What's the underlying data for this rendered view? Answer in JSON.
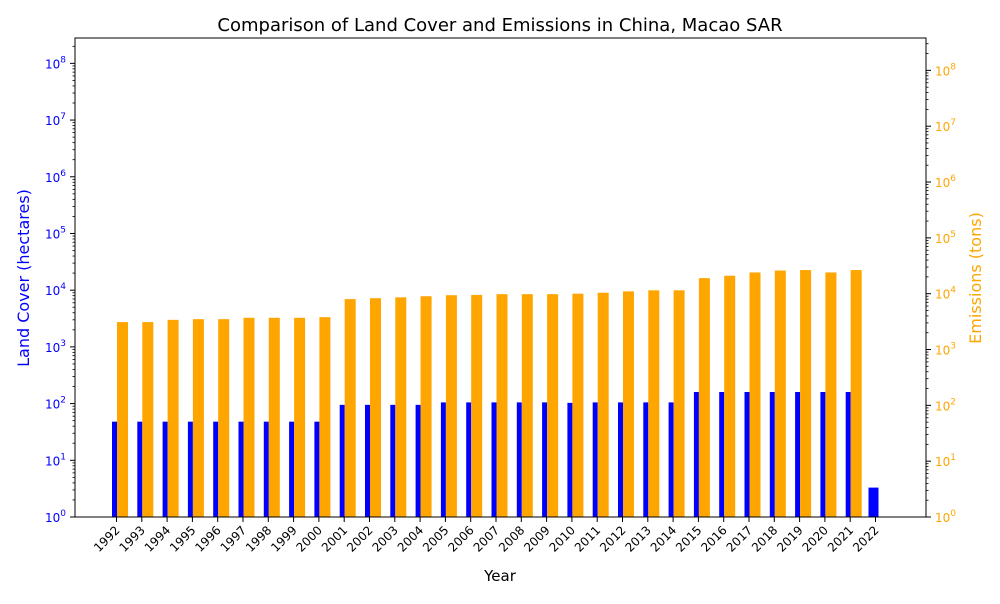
{
  "chart_data": {
    "type": "bar",
    "title": "Comparison of Land Cover and Emissions in China, Macao SAR",
    "xlabel": "Year",
    "ylabel_left": "Land Cover (hectares)",
    "ylabel_right": "Emissions (tons)",
    "scale": "log",
    "ylim_left": [
      1,
      280000000
    ],
    "ylim_right": [
      1,
      380000000
    ],
    "left_ticks": [
      "10^0",
      "10^1",
      "10^2",
      "10^3",
      "10^4",
      "10^5",
      "10^6",
      "10^7",
      "10^8"
    ],
    "right_ticks": [
      "10^0",
      "10^1",
      "10^2",
      "10^3",
      "10^4",
      "10^5",
      "10^6",
      "10^7",
      "10^8"
    ],
    "categories": [
      "1992",
      "1993",
      "1994",
      "1995",
      "1996",
      "1997",
      "1998",
      "1999",
      "2000",
      "2001",
      "2002",
      "2003",
      "2004",
      "2005",
      "2006",
      "2007",
      "2008",
      "2009",
      "2010",
      "2011",
      "2012",
      "2013",
      "2014",
      "2015",
      "2016",
      "2017",
      "2018",
      "2019",
      "2020",
      "2021",
      "2022"
    ],
    "series": [
      {
        "name": "Land Cover (hectares)",
        "axis": "left",
        "color": "#0000ff",
        "values": [
          48,
          48,
          48,
          48,
          48,
          48,
          48,
          48,
          48,
          95,
          95,
          95,
          95,
          105,
          105,
          105,
          105,
          105,
          103,
          105,
          105,
          105,
          105,
          160,
          160,
          160,
          160,
          160,
          160,
          160,
          3.3
        ]
      },
      {
        "name": "Emissions (tons)",
        "axis": "right",
        "color": "#ffa500",
        "values": [
          3100,
          3100,
          3400,
          3500,
          3500,
          3700,
          3700,
          3700,
          3800,
          8000,
          8300,
          8600,
          9000,
          9400,
          9500,
          9800,
          9800,
          9800,
          10000,
          10400,
          11000,
          11500,
          11500,
          19000,
          21000,
          24000,
          26000,
          26500,
          24000,
          26500,
          null
        ]
      }
    ],
    "grid": false,
    "left_axis_color": "#0000ff",
    "right_axis_color": "#ffa500"
  }
}
